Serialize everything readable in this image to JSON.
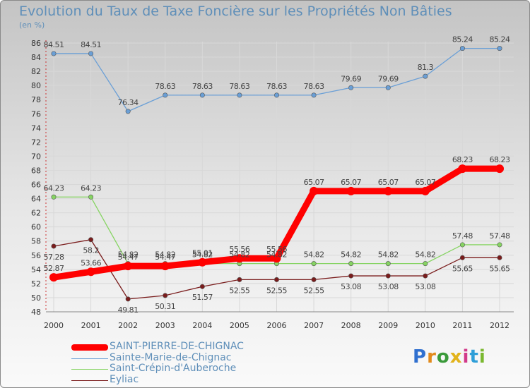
{
  "chart_data": {
    "type": "line",
    "title": "Evolution du Taux de Taxe Foncière sur les Propriétés Non Bâties",
    "ylabel": "(en %)",
    "xlabel": "",
    "x": [
      "2000",
      "2001",
      "2002",
      "2003",
      "2004",
      "2005",
      "2006",
      "2007",
      "2008",
      "2009",
      "2010",
      "2011",
      "2012"
    ],
    "ylim": [
      48,
      86
    ],
    "yticks": [
      48,
      50,
      52,
      54,
      56,
      58,
      60,
      62,
      64,
      66,
      68,
      70,
      72,
      74,
      76,
      78,
      80,
      82,
      84,
      86
    ],
    "series": [
      {
        "name": "SAINT-PIERRE-DE-CHIGNAC",
        "color": "#ff0000",
        "values": [
          52.87,
          53.66,
          54.47,
          54.47,
          55.01,
          55.56,
          55.56,
          65.07,
          65.07,
          65.07,
          65.07,
          68.23,
          68.23
        ],
        "labels": [
          "52.87",
          "53.66",
          "54.47",
          "54.47",
          "55.01",
          "55.56",
          "55.56",
          "65.07",
          "65.07",
          "65.07",
          "65.07",
          "68.23",
          "68.23"
        ]
      },
      {
        "name": "Sainte-Marie-de-Chignac",
        "color": "#6a9fd6",
        "values": [
          84.51,
          84.51,
          76.34,
          78.63,
          78.63,
          78.63,
          78.63,
          78.63,
          79.69,
          79.69,
          81.3,
          85.24,
          85.24
        ],
        "labels": [
          "84.51",
          "84.51",
          "76.34",
          "78.63",
          "78.63",
          "78.63",
          "78.63",
          "78.63",
          "79.69",
          "79.69",
          "81.3",
          "85.24",
          "85.24"
        ]
      },
      {
        "name": "Saint-Crépin-d'Auberoche",
        "color": "#86d462",
        "values": [
          64.23,
          64.23,
          54.82,
          54.82,
          54.82,
          54.82,
          54.82,
          54.82,
          54.82,
          54.82,
          54.82,
          57.48,
          57.48
        ],
        "labels": [
          "64.23",
          "64.23",
          "54.82",
          "54.82",
          "54.82",
          "54.82",
          "54.82",
          "54.82",
          "54.82",
          "54.82",
          "54.82",
          "57.48",
          "57.48"
        ]
      },
      {
        "name": "Eyliac",
        "color": "#7a1c1c",
        "values": [
          57.28,
          58.2,
          49.81,
          50.31,
          51.57,
          52.55,
          52.55,
          52.55,
          53.08,
          53.08,
          53.08,
          55.65,
          55.65
        ],
        "labels": [
          "57.28",
          "58.2",
          "49.81",
          "50.31",
          "51.57",
          "52.55",
          "52.55",
          "52.55",
          "53.08",
          "53.08",
          "53.08",
          "55.65",
          "55.65"
        ]
      }
    ]
  },
  "legend": {
    "items": [
      {
        "label": "SAINT-PIERRE-DE-CHIGNAC",
        "color": "#ff0000"
      },
      {
        "label": "Sainte-Marie-de-Chignac",
        "color": "#6a9fd6"
      },
      {
        "label": "Saint-Crépin-d'Auberoche",
        "color": "#86d462"
      },
      {
        "label": "Eyliac",
        "color": "#7a1c1c"
      }
    ]
  },
  "logo": {
    "text": "Proxiti"
  }
}
